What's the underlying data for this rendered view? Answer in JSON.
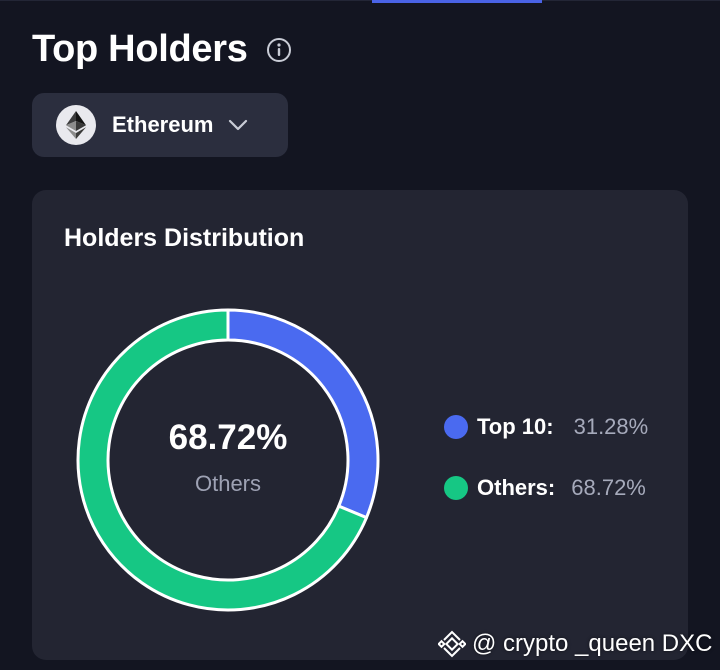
{
  "header": {
    "title": "Top Holders",
    "info_icon": "info-circle-icon"
  },
  "chain_selector": {
    "label": "Ethereum",
    "icon": "ethereum-icon",
    "dropdown_icon": "chevron-down-icon"
  },
  "distribution_card": {
    "title": "Holders Distribution",
    "center_value": "68.72%",
    "center_label": "Others",
    "legend": [
      {
        "label": "Top 10:",
        "value": "31.28%",
        "color": "#4a6af0"
      },
      {
        "label": "Others:",
        "value": "68.72%",
        "color": "#16c784"
      }
    ]
  },
  "chart_data": {
    "type": "pie",
    "variant": "donut",
    "categories": [
      "Top 10",
      "Others"
    ],
    "values": [
      31.28,
      68.72
    ],
    "colors": [
      "#4a6af0",
      "#16c784"
    ],
    "title": "Holders Distribution"
  },
  "watermark": {
    "text": "@ crypto _queen DXC",
    "icon": "binance-logo-icon"
  },
  "colors": {
    "background": "#131521",
    "card": "#232532",
    "selector": "#2b2e3e",
    "tab_accent": "#4a63e6",
    "muted_text": "#9ea2b4"
  }
}
